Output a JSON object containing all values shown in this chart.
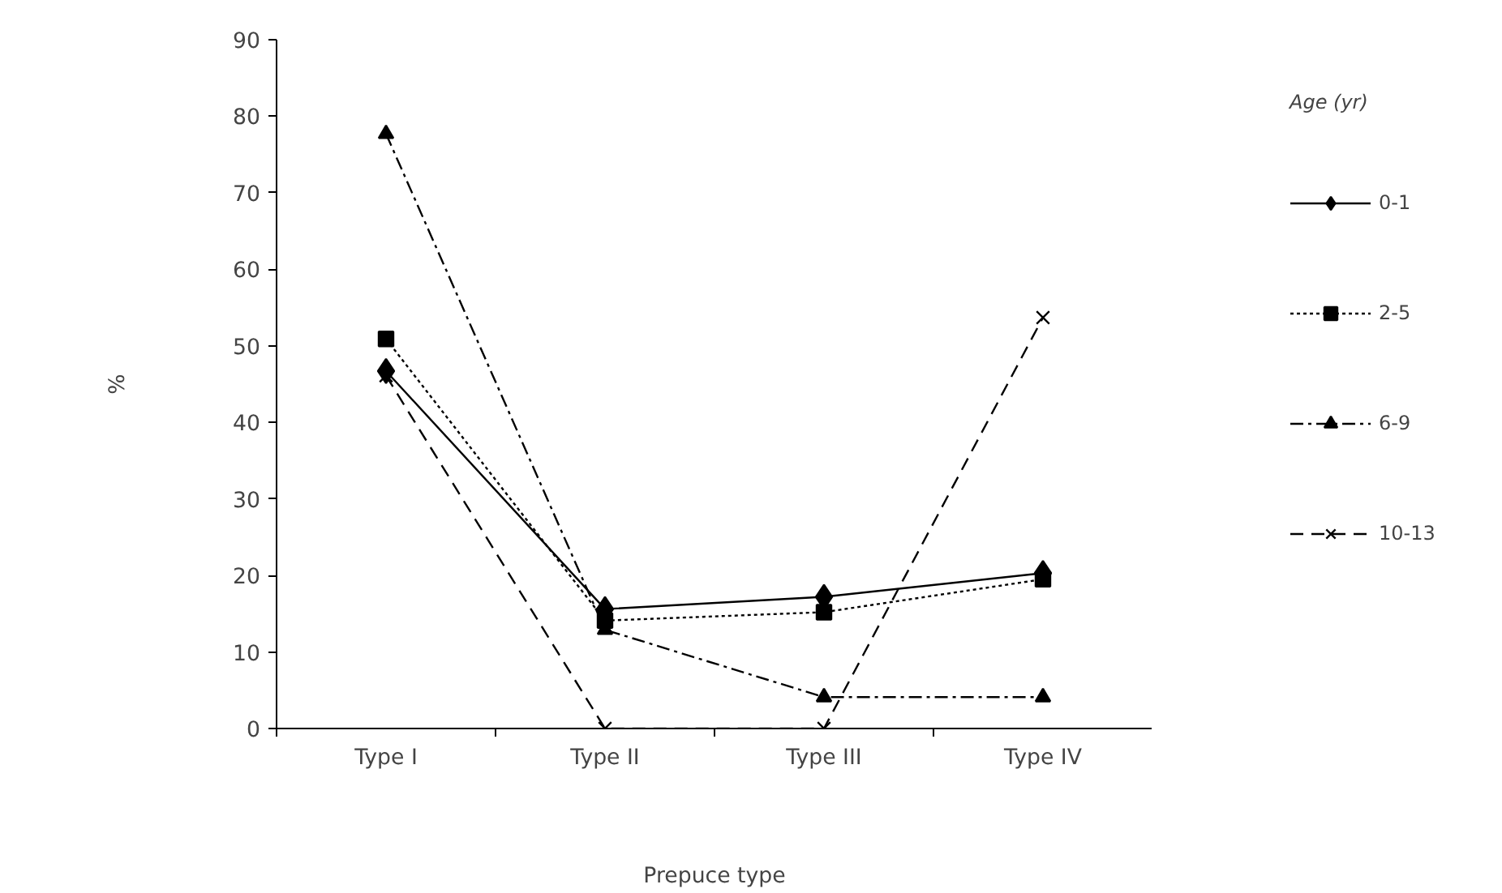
{
  "chart_data": {
    "type": "line",
    "xlabel": "Prepuce type",
    "ylabel": "%",
    "legend_title": "Age (yr)",
    "categories": [
      "Type I",
      "Type II",
      "Type III",
      "Type IV"
    ],
    "ylim": [
      0,
      90
    ],
    "yticks": [
      0,
      10,
      20,
      30,
      40,
      50,
      60,
      70,
      80,
      90
    ],
    "grid": false,
    "legend": "right",
    "series": [
      {
        "name": "0-1",
        "color": "#000000",
        "marker": "diamond",
        "line_style": "solid",
        "values": [
          46.7,
          15.6,
          17.2,
          20.3
        ]
      },
      {
        "name": "2-5",
        "color": "#000000",
        "marker": "square",
        "line_style": "dotted",
        "values": [
          50.9,
          14.1,
          15.2,
          19.5
        ]
      },
      {
        "name": "6-9",
        "color": "#000000",
        "marker": "triangle",
        "line_style": "dashdot",
        "values": [
          77.7,
          12.9,
          4.1,
          4.1
        ]
      },
      {
        "name": "10-13",
        "color": "#000000",
        "marker": "cross",
        "line_style": "dashed",
        "values": [
          46.1,
          0,
          0,
          53.7
        ]
      }
    ]
  }
}
